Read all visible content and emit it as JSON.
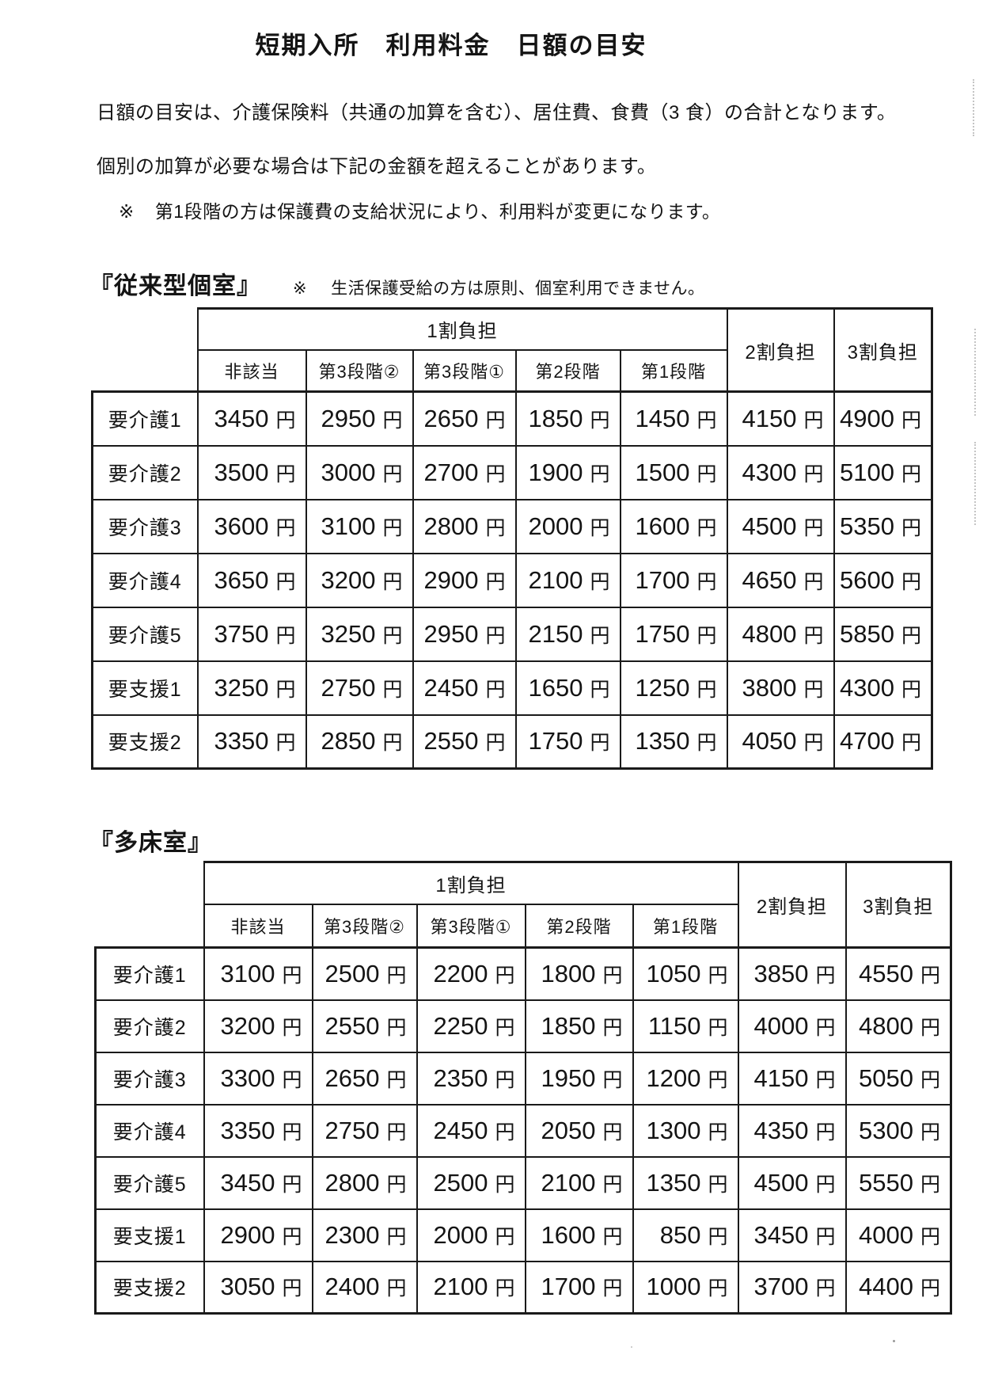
{
  "document": {
    "title": "短期入所　利用料金　日額の目安",
    "intro_lines": [
      "日額の目安は、介護保険料（共通の加算を含む）、居住費、食費（3 食）の合計となります。",
      "個別の加算が必要な場合は下記の金額を超えることがあります。"
    ],
    "note": {
      "marker": "※",
      "text": "第1段階の方は保護費の支給状況により、利用料が変更になります。"
    },
    "unit": "円"
  },
  "tables": [
    {
      "section_title": "『従来型個室』",
      "section_note": {
        "marker": "※",
        "text": "生活保護受給の方は原則、個室利用できません。"
      },
      "group_header": "1割負担",
      "sub_headers": [
        "非該当",
        "第3段階②",
        "第3段階①",
        "第2段階",
        "第1段階"
      ],
      "span_headers": [
        "2割負担",
        "3割負担"
      ],
      "rows": [
        {
          "label": "要介護1",
          "values": [
            3450,
            2950,
            2650,
            1850,
            1450,
            4150,
            4900
          ]
        },
        {
          "label": "要介護2",
          "values": [
            3500,
            3000,
            2700,
            1900,
            1500,
            4300,
            5100
          ]
        },
        {
          "label": "要介護3",
          "values": [
            3600,
            3100,
            2800,
            2000,
            1600,
            4500,
            5350
          ]
        },
        {
          "label": "要介護4",
          "values": [
            3650,
            3200,
            2900,
            2100,
            1700,
            4650,
            5600
          ]
        },
        {
          "label": "要介護5",
          "values": [
            3750,
            3250,
            2950,
            2150,
            1750,
            4800,
            5850
          ]
        },
        {
          "label": "要支援1",
          "values": [
            3250,
            2750,
            2450,
            1650,
            1250,
            3800,
            4300
          ]
        },
        {
          "label": "要支援2",
          "values": [
            3350,
            2850,
            2550,
            1750,
            1350,
            4050,
            4700
          ]
        }
      ]
    },
    {
      "section_title": "『多床室』",
      "section_note": null,
      "group_header": "1割負担",
      "sub_headers": [
        "非該当",
        "第3段階②",
        "第3段階①",
        "第2段階",
        "第1段階"
      ],
      "span_headers": [
        "2割負担",
        "3割負担"
      ],
      "rows": [
        {
          "label": "要介護1",
          "values": [
            3100,
            2500,
            2200,
            1800,
            1050,
            3850,
            4550
          ]
        },
        {
          "label": "要介護2",
          "values": [
            3200,
            2550,
            2250,
            1850,
            1150,
            4000,
            4800
          ]
        },
        {
          "label": "要介護3",
          "values": [
            3300,
            2650,
            2350,
            1950,
            1200,
            4150,
            5050
          ]
        },
        {
          "label": "要介護4",
          "values": [
            3350,
            2750,
            2450,
            2050,
            1300,
            4350,
            5300
          ]
        },
        {
          "label": "要介護5",
          "values": [
            3450,
            2800,
            2500,
            2100,
            1350,
            4500,
            5550
          ]
        },
        {
          "label": "要支援1",
          "values": [
            2900,
            2300,
            2000,
            1600,
            850,
            3450,
            4000
          ]
        },
        {
          "label": "要支援2",
          "values": [
            3050,
            2400,
            2100,
            1700,
            1000,
            3700,
            4400
          ]
        }
      ]
    }
  ]
}
